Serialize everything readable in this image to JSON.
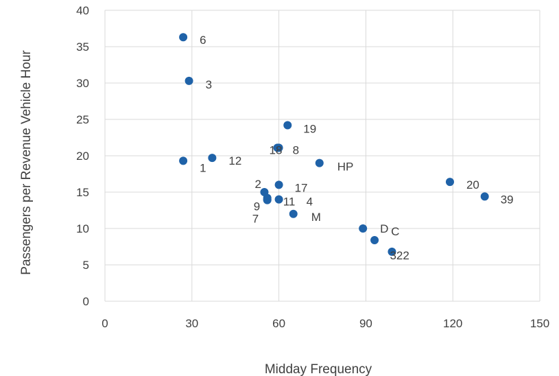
{
  "chart_data": {
    "type": "scatter",
    "title": "",
    "xlabel": "Midday Frequency",
    "ylabel": "Passengers per Revenue Vehicle Hour",
    "xlim": [
      0,
      150
    ],
    "ylim": [
      0,
      40
    ],
    "xticks": [
      0,
      30,
      60,
      90,
      120,
      150
    ],
    "yticks": [
      0,
      5,
      10,
      15,
      20,
      25,
      30,
      35,
      40
    ],
    "grid": true,
    "marker_color": "#1f62a8",
    "points": [
      {
        "label": "6",
        "x": 27,
        "y": 36.3
      },
      {
        "label": "3",
        "x": 29,
        "y": 30.3
      },
      {
        "label": "1",
        "x": 27,
        "y": 19.3
      },
      {
        "label": "12",
        "x": 37,
        "y": 19.7
      },
      {
        "label": "19",
        "x": 63,
        "y": 24.2
      },
      {
        "label": "18",
        "x": 59.5,
        "y": 21.1
      },
      {
        "label": "8",
        "x": 60,
        "y": 21.1
      },
      {
        "label": "HP",
        "x": 74,
        "y": 19.0
      },
      {
        "label": "2",
        "x": 55,
        "y": 15.0
      },
      {
        "label": "17",
        "x": 60,
        "y": 16.0
      },
      {
        "label": "9",
        "x": 56,
        "y": 14.2
      },
      {
        "label": "11",
        "x": 56,
        "y": 14.0
      },
      {
        "label": "4",
        "x": 60,
        "y": 14.0
      },
      {
        "label": "7",
        "x": 56,
        "y": 13.9
      },
      {
        "label": "M",
        "x": 65,
        "y": 12.0
      },
      {
        "label": "D",
        "x": 89,
        "y": 10.0
      },
      {
        "label": "C",
        "x": 93,
        "y": 8.4
      },
      {
        "label": "322",
        "x": 99,
        "y": 6.8
      },
      {
        "label": "20",
        "x": 119,
        "y": 16.4
      },
      {
        "label": "39",
        "x": 131,
        "y": 14.4
      }
    ]
  }
}
